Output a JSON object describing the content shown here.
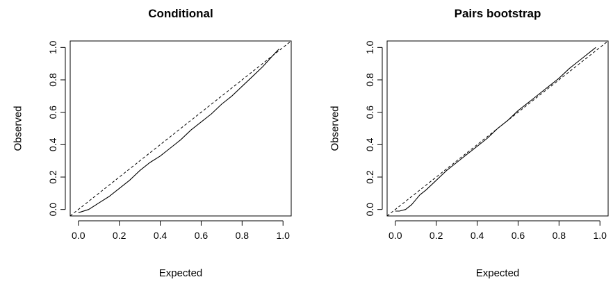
{
  "chart_data": [
    {
      "type": "line",
      "title": "Conditional",
      "xlabel": "Expected",
      "ylabel": "Observed",
      "xlim": [
        -0.04,
        1.04
      ],
      "ylim": [
        -0.04,
        1.04
      ],
      "xticks": [
        0.0,
        0.2,
        0.4,
        0.6,
        0.8,
        1.0
      ],
      "yticks": [
        0.0,
        0.2,
        0.4,
        0.6,
        0.8,
        1.0
      ],
      "xtick_labels": [
        "0.0",
        "0.2",
        "0.4",
        "0.6",
        "0.8",
        "1.0"
      ],
      "ytick_labels": [
        "0.0",
        "0.2",
        "0.4",
        "0.6",
        "0.8",
        "1.0"
      ],
      "grid": false,
      "series": [
        {
          "style": "solid",
          "x": [
            0.0,
            0.05,
            0.1,
            0.15,
            0.2,
            0.25,
            0.3,
            0.35,
            0.4,
            0.45,
            0.5,
            0.55,
            0.6,
            0.65,
            0.7,
            0.75,
            0.8,
            0.85,
            0.9,
            0.95,
            0.98
          ],
          "y": [
            -0.02,
            0.0,
            0.04,
            0.08,
            0.13,
            0.18,
            0.24,
            0.29,
            0.33,
            0.38,
            0.43,
            0.49,
            0.54,
            0.59,
            0.65,
            0.7,
            0.76,
            0.82,
            0.88,
            0.95,
            0.99
          ]
        },
        {
          "style": "dashed",
          "x": [
            -0.04,
            1.04
          ],
          "y": [
            -0.04,
            1.04
          ]
        }
      ]
    },
    {
      "type": "line",
      "title": "Pairs bootstrap",
      "xlabel": "Expected",
      "ylabel": "Observed",
      "xlim": [
        -0.04,
        1.04
      ],
      "ylim": [
        -0.04,
        1.04
      ],
      "xticks": [
        0.0,
        0.2,
        0.4,
        0.6,
        0.8,
        1.0
      ],
      "yticks": [
        0.0,
        0.2,
        0.4,
        0.6,
        0.8,
        1.0
      ],
      "xtick_labels": [
        "0.0",
        "0.2",
        "0.4",
        "0.6",
        "0.8",
        "1.0"
      ],
      "ytick_labels": [
        "0.0",
        "0.2",
        "0.4",
        "0.6",
        "0.8",
        "1.0"
      ],
      "grid": false,
      "series": [
        {
          "style": "solid",
          "x": [
            0.0,
            0.02,
            0.05,
            0.08,
            0.1,
            0.12,
            0.15,
            0.2,
            0.25,
            0.3,
            0.35,
            0.4,
            0.45,
            0.5,
            0.55,
            0.6,
            0.65,
            0.7,
            0.75,
            0.8,
            0.85,
            0.9,
            0.95,
            0.98
          ],
          "y": [
            -0.01,
            -0.01,
            0.0,
            0.03,
            0.06,
            0.09,
            0.12,
            0.18,
            0.24,
            0.29,
            0.34,
            0.39,
            0.44,
            0.5,
            0.55,
            0.61,
            0.66,
            0.71,
            0.76,
            0.81,
            0.87,
            0.92,
            0.97,
            1.0
          ]
        },
        {
          "style": "dashed",
          "x": [
            -0.04,
            1.04
          ],
          "y": [
            -0.04,
            1.04
          ]
        }
      ]
    }
  ]
}
